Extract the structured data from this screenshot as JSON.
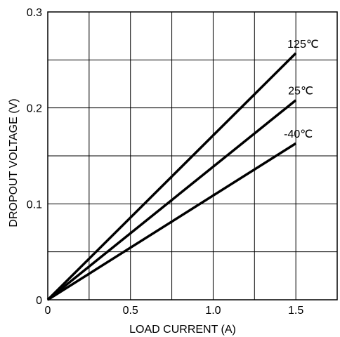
{
  "chart_data": {
    "type": "line",
    "title": "",
    "xlabel": "LOAD CURRENT (A)",
    "ylabel": "DROPOUT VOLTAGE (V)",
    "xlim": [
      0,
      1.75
    ],
    "ylim": [
      0,
      0.3
    ],
    "grid": true,
    "x_major_ticks": [
      0,
      0.5,
      1.0,
      1.5
    ],
    "x_tick_labels": [
      "0",
      "0.5",
      "1.0",
      "1.5"
    ],
    "x_grid": [
      0,
      0.25,
      0.5,
      0.75,
      1.0,
      1.25,
      1.5,
      1.75
    ],
    "y_major_ticks": [
      0,
      0.1,
      0.2,
      0.3
    ],
    "y_tick_labels": [
      "0",
      "0.1",
      "0.2",
      "0.3"
    ],
    "y_grid": [
      0,
      0.05,
      0.1,
      0.15,
      0.2,
      0.25,
      0.3
    ],
    "series": [
      {
        "name": "125℃",
        "x": [
          0,
          1.5
        ],
        "y": [
          0,
          0.257
        ]
      },
      {
        "name": "25℃",
        "x": [
          0,
          1.5
        ],
        "y": [
          0,
          0.208
        ]
      },
      {
        "name": "-40℃",
        "x": [
          0,
          1.5
        ],
        "y": [
          0,
          0.163
        ]
      }
    ]
  }
}
